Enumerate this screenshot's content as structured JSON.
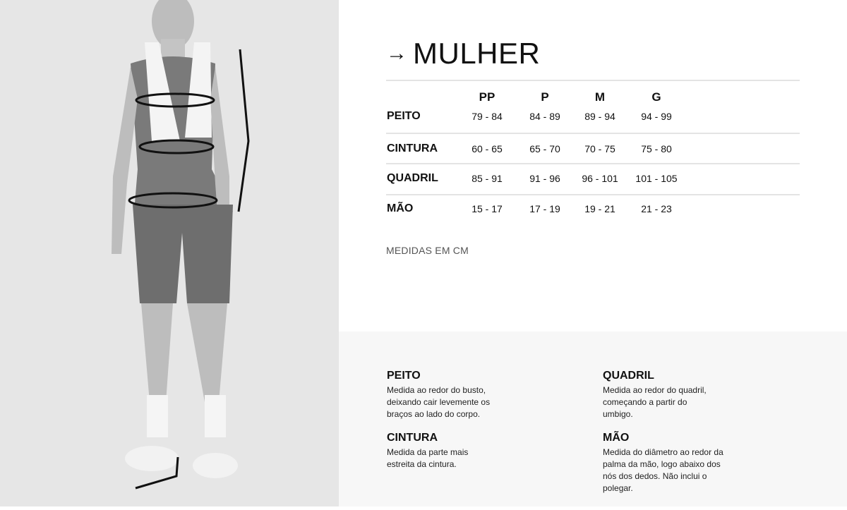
{
  "title": "MULHER",
  "sizes": [
    "PP",
    "P",
    "M",
    "G"
  ],
  "rows": [
    {
      "label": "PEITO",
      "values": [
        "79 - 84",
        "84 - 89",
        "89 - 94",
        "94 - 99"
      ]
    },
    {
      "label": "CINTURA",
      "values": [
        "60 - 65",
        "65 - 70",
        "70 - 75",
        "75 - 80"
      ]
    },
    {
      "label": "QUADRIL",
      "values": [
        "85 - 91",
        "91 - 96",
        "96 - 101",
        "101 - 105"
      ]
    },
    {
      "label": "MÃO",
      "values": [
        "15 - 17",
        "17 - 19",
        "19 - 21",
        "21 - 23"
      ]
    }
  ],
  "units_note": "MEDIDAS EM CM",
  "descriptions": [
    {
      "title": "PEITO",
      "text": "Medida ao redor do busto, deixando cair levemente os braços ao lado do corpo."
    },
    {
      "title": "CINTURA",
      "text": "Medida da parte mais estreita da cintura."
    },
    {
      "title": "QUADRIL",
      "text": "Medida ao redor do quadril, começando a partir do umbigo."
    },
    {
      "title": "MÃO",
      "text": "Medida do diâmetro ao redor da palma da mão, logo abaixo dos nós dos dedos. Não inclui o polegar."
    }
  ],
  "icons": {
    "title": "arrow-right-icon"
  }
}
